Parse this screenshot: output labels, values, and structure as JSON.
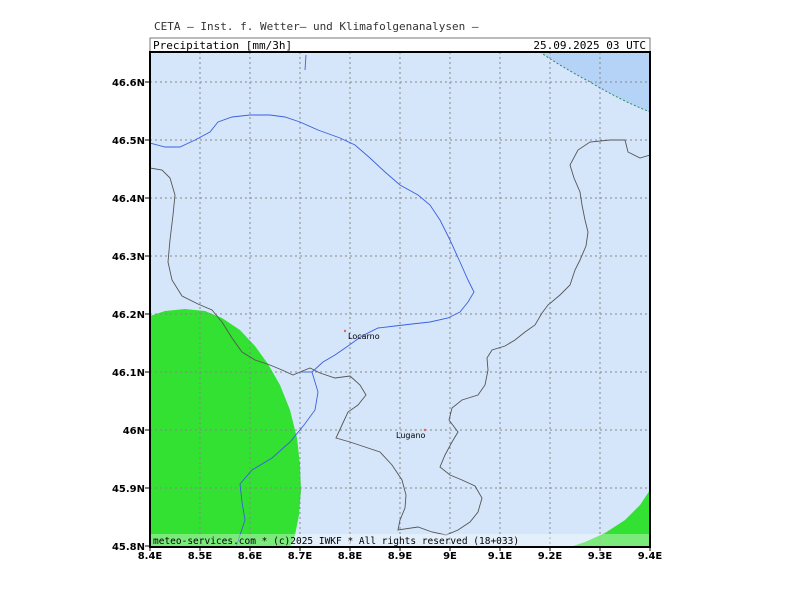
{
  "header": {
    "source": "CETA — Inst. f. Wetter— und Klimafolgenanalysen —",
    "field": "Precipitation_[mm/3h]",
    "valid_time": "25.09.2025 03 UTC"
  },
  "axes": {
    "lat_ticks": [
      "46.6N",
      "46.5N",
      "46.4N",
      "46.3N",
      "46.2N",
      "46.1N",
      "46N",
      "45.9N",
      "45.8N"
    ],
    "lon_ticks": [
      "8.4E",
      "8.5E",
      "8.6E",
      "8.7E",
      "8.8E",
      "8.9E",
      "9E",
      "9.1E",
      "9.2E",
      "9.3E",
      "9.4E"
    ]
  },
  "cities": [
    {
      "name": "Locarno"
    },
    {
      "name": "Lugano"
    }
  ],
  "footer": {
    "credit": "meteo-services.com * (c)2025 IWKF * All rights reserved (18+033)"
  },
  "colors": {
    "background_precip": "#d6e6fa",
    "heavy_precip_green": "#33e133",
    "upper_right_blue": "#b5d3f6",
    "river_lake": "#3a5fe0",
    "border": "#555555",
    "grid": "#888888"
  }
}
